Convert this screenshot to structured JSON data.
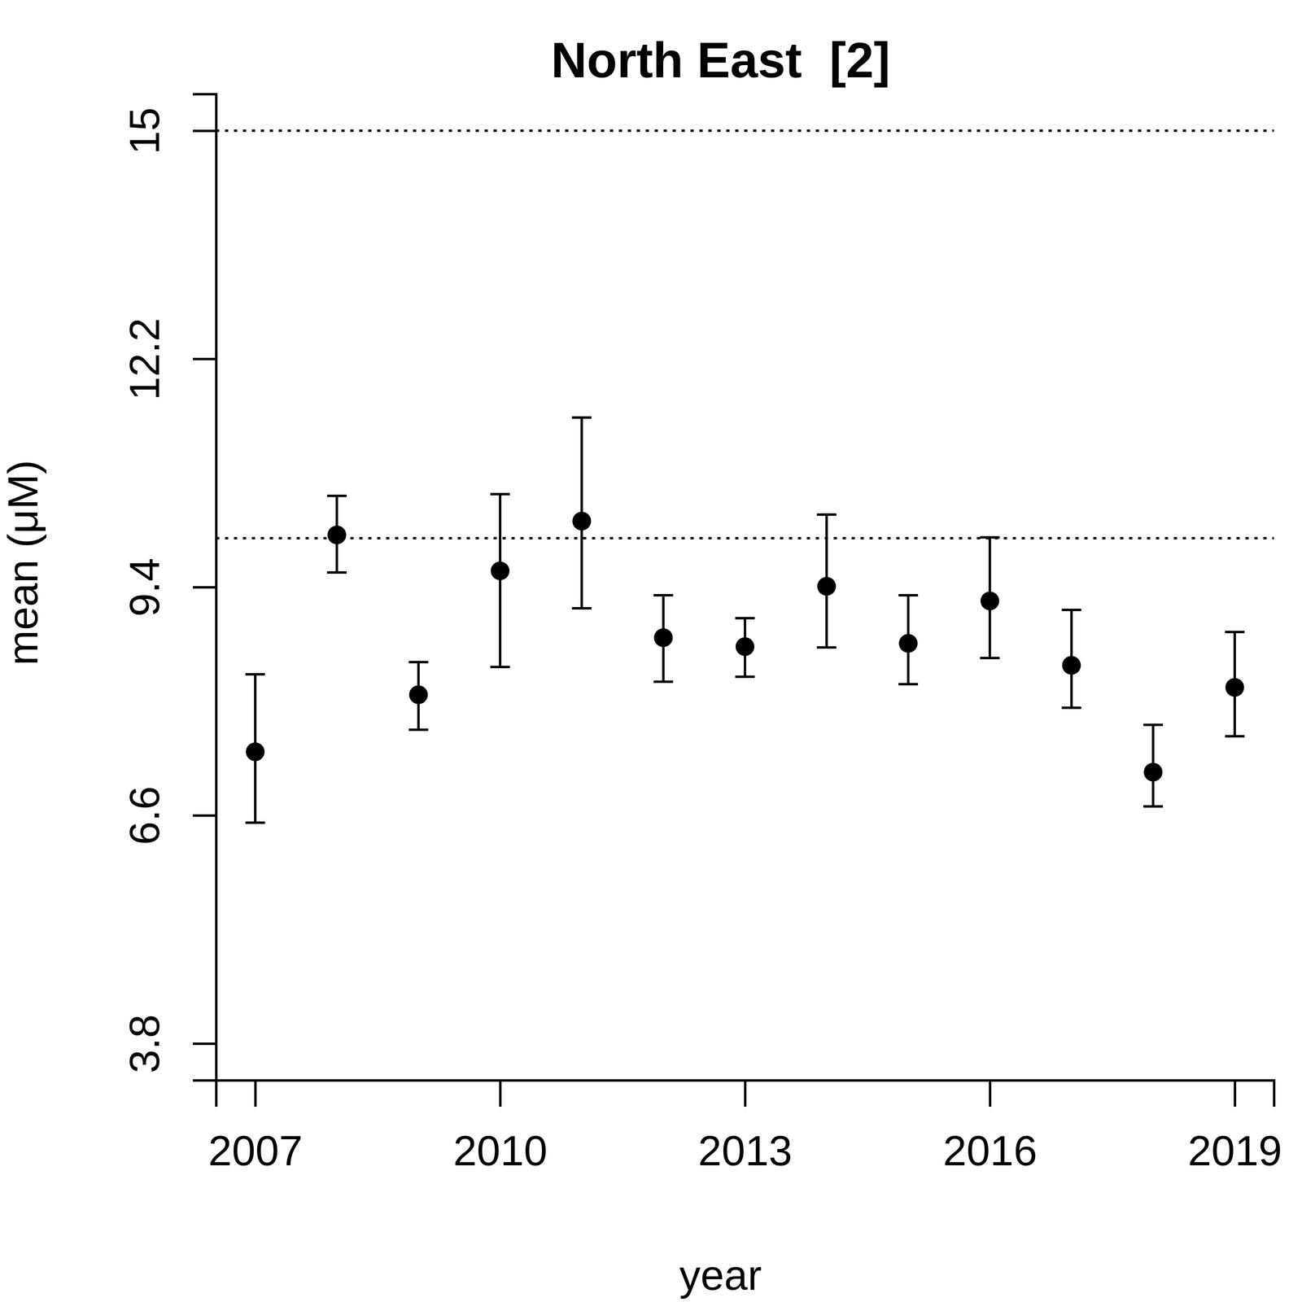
{
  "chart_data": {
    "type": "scatter",
    "title": "North East  [2]",
    "x_label": "year",
    "y_label": "mean (μM)",
    "x": [
      2007,
      2008,
      2009,
      2010,
      2011,
      2012,
      2013,
      2014,
      2015,
      2016,
      2017,
      2018,
      2019
    ],
    "values": [
      7.38,
      10.04,
      8.08,
      9.6,
      10.21,
      8.78,
      8.67,
      9.41,
      8.71,
      9.23,
      8.44,
      7.13,
      8.17
    ],
    "lower": [
      6.51,
      9.58,
      7.65,
      8.42,
      9.14,
      8.24,
      8.3,
      8.66,
      8.21,
      8.53,
      7.92,
      6.71,
      7.57
    ],
    "upper": [
      8.33,
      10.52,
      8.48,
      10.54,
      11.48,
      9.3,
      9.02,
      10.29,
      9.3,
      10.01,
      9.12,
      7.71,
      8.85
    ],
    "reference_lines": [
      15,
      10
    ],
    "xlim": [
      2006.52,
      2019.48
    ],
    "ylim": [
      3.35,
      15.45
    ],
    "xticks": [
      2007,
      2010,
      2013,
      2016,
      2019
    ],
    "yticks": [
      3.8,
      6.6,
      9.4,
      12.2,
      15
    ],
    "color": "#000000",
    "marker": "circle",
    "grid": false
  }
}
